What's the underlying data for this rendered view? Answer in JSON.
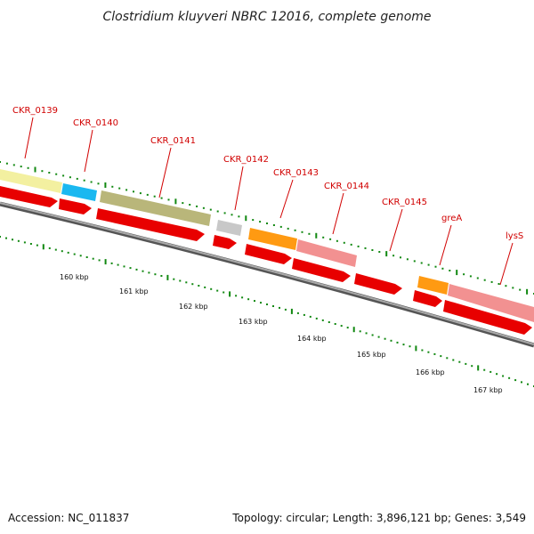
{
  "title": "Clostridium kluyveri NBRC 12016, complete genome",
  "footer": {
    "accession": "Accession: NC_011837",
    "stats": "Topology: circular; Length: 3,896,121 bp; Genes: 3,549"
  },
  "genes": [
    {
      "id": "CKR_0139",
      "label": "CKR_0139",
      "color": "#f3f0a0"
    },
    {
      "id": "CKR_0140",
      "label": "CKR_0140",
      "color": "#1ab8f0"
    },
    {
      "id": "CKR_0141",
      "label": "CKR_0141",
      "color": "#b9b67a"
    },
    {
      "id": "CKR_0142",
      "label": "CKR_0142",
      "color": "#c8c8c8"
    },
    {
      "id": "CKR_0143",
      "label": "CKR_0143",
      "color": "#ff9a12"
    },
    {
      "id": "CKR_0144",
      "label": "CKR_0144",
      "color": "#f29191"
    },
    {
      "id": "CKR_0145",
      "label": "CKR_0145",
      "color": "#ff0000"
    },
    {
      "id": "greA",
      "label": "greA",
      "color": "#ff9a12"
    },
    {
      "id": "lysS",
      "label": "lysS",
      "color": "#f29191"
    }
  ],
  "scale": {
    "ticks": [
      "160 kbp",
      "161 kbp",
      "162 kbp",
      "163 kbp",
      "164 kbp",
      "165 kbp",
      "166 kbp",
      "167 kbp"
    ]
  },
  "colors": {
    "cds": "#e80000",
    "backbone": "#888888",
    "tick": "#118811"
  }
}
